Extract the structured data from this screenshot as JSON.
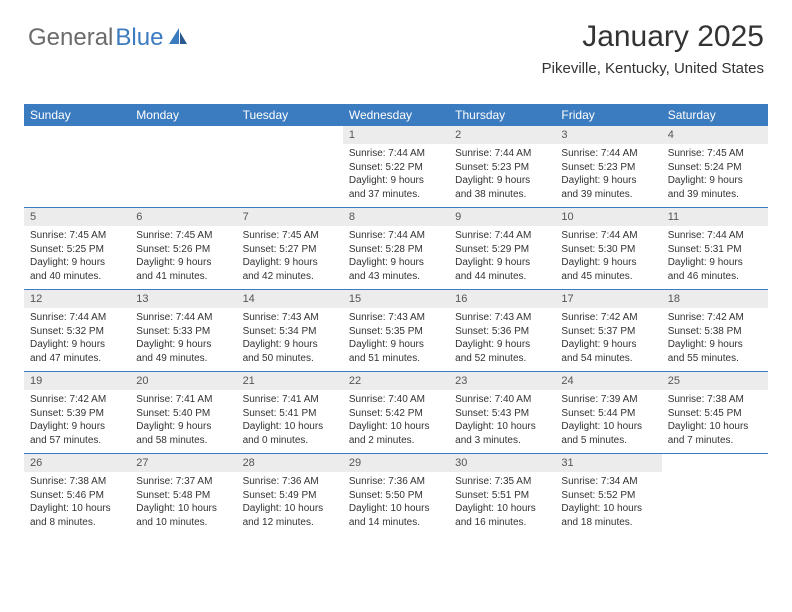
{
  "logo": {
    "text1": "General",
    "text2": "Blue"
  },
  "header": {
    "month": "January 2025",
    "location": "Pikeville, Kentucky, United States"
  },
  "colors": {
    "accent": "#3b7bbf",
    "dayNumBg": "#ececec",
    "text": "#333333",
    "logoGray": "#6b6b6b"
  },
  "dayNames": [
    "Sunday",
    "Monday",
    "Tuesday",
    "Wednesday",
    "Thursday",
    "Friday",
    "Saturday"
  ],
  "weeks": [
    [
      {
        "empty": true
      },
      {
        "empty": true
      },
      {
        "empty": true
      },
      {
        "num": "1",
        "sunrise": "7:44 AM",
        "sunset": "5:22 PM",
        "daylight": "9 hours and 37 minutes."
      },
      {
        "num": "2",
        "sunrise": "7:44 AM",
        "sunset": "5:23 PM",
        "daylight": "9 hours and 38 minutes."
      },
      {
        "num": "3",
        "sunrise": "7:44 AM",
        "sunset": "5:23 PM",
        "daylight": "9 hours and 39 minutes."
      },
      {
        "num": "4",
        "sunrise": "7:45 AM",
        "sunset": "5:24 PM",
        "daylight": "9 hours and 39 minutes."
      }
    ],
    [
      {
        "num": "5",
        "sunrise": "7:45 AM",
        "sunset": "5:25 PM",
        "daylight": "9 hours and 40 minutes."
      },
      {
        "num": "6",
        "sunrise": "7:45 AM",
        "sunset": "5:26 PM",
        "daylight": "9 hours and 41 minutes."
      },
      {
        "num": "7",
        "sunrise": "7:45 AM",
        "sunset": "5:27 PM",
        "daylight": "9 hours and 42 minutes."
      },
      {
        "num": "8",
        "sunrise": "7:44 AM",
        "sunset": "5:28 PM",
        "daylight": "9 hours and 43 minutes."
      },
      {
        "num": "9",
        "sunrise": "7:44 AM",
        "sunset": "5:29 PM",
        "daylight": "9 hours and 44 minutes."
      },
      {
        "num": "10",
        "sunrise": "7:44 AM",
        "sunset": "5:30 PM",
        "daylight": "9 hours and 45 minutes."
      },
      {
        "num": "11",
        "sunrise": "7:44 AM",
        "sunset": "5:31 PM",
        "daylight": "9 hours and 46 minutes."
      }
    ],
    [
      {
        "num": "12",
        "sunrise": "7:44 AM",
        "sunset": "5:32 PM",
        "daylight": "9 hours and 47 minutes."
      },
      {
        "num": "13",
        "sunrise": "7:44 AM",
        "sunset": "5:33 PM",
        "daylight": "9 hours and 49 minutes."
      },
      {
        "num": "14",
        "sunrise": "7:43 AM",
        "sunset": "5:34 PM",
        "daylight": "9 hours and 50 minutes."
      },
      {
        "num": "15",
        "sunrise": "7:43 AM",
        "sunset": "5:35 PM",
        "daylight": "9 hours and 51 minutes."
      },
      {
        "num": "16",
        "sunrise": "7:43 AM",
        "sunset": "5:36 PM",
        "daylight": "9 hours and 52 minutes."
      },
      {
        "num": "17",
        "sunrise": "7:42 AM",
        "sunset": "5:37 PM",
        "daylight": "9 hours and 54 minutes."
      },
      {
        "num": "18",
        "sunrise": "7:42 AM",
        "sunset": "5:38 PM",
        "daylight": "9 hours and 55 minutes."
      }
    ],
    [
      {
        "num": "19",
        "sunrise": "7:42 AM",
        "sunset": "5:39 PM",
        "daylight": "9 hours and 57 minutes."
      },
      {
        "num": "20",
        "sunrise": "7:41 AM",
        "sunset": "5:40 PM",
        "daylight": "9 hours and 58 minutes."
      },
      {
        "num": "21",
        "sunrise": "7:41 AM",
        "sunset": "5:41 PM",
        "daylight": "10 hours and 0 minutes."
      },
      {
        "num": "22",
        "sunrise": "7:40 AM",
        "sunset": "5:42 PM",
        "daylight": "10 hours and 2 minutes."
      },
      {
        "num": "23",
        "sunrise": "7:40 AM",
        "sunset": "5:43 PM",
        "daylight": "10 hours and 3 minutes."
      },
      {
        "num": "24",
        "sunrise": "7:39 AM",
        "sunset": "5:44 PM",
        "daylight": "10 hours and 5 minutes."
      },
      {
        "num": "25",
        "sunrise": "7:38 AM",
        "sunset": "5:45 PM",
        "daylight": "10 hours and 7 minutes."
      }
    ],
    [
      {
        "num": "26",
        "sunrise": "7:38 AM",
        "sunset": "5:46 PM",
        "daylight": "10 hours and 8 minutes."
      },
      {
        "num": "27",
        "sunrise": "7:37 AM",
        "sunset": "5:48 PM",
        "daylight": "10 hours and 10 minutes."
      },
      {
        "num": "28",
        "sunrise": "7:36 AM",
        "sunset": "5:49 PM",
        "daylight": "10 hours and 12 minutes."
      },
      {
        "num": "29",
        "sunrise": "7:36 AM",
        "sunset": "5:50 PM",
        "daylight": "10 hours and 14 minutes."
      },
      {
        "num": "30",
        "sunrise": "7:35 AM",
        "sunset": "5:51 PM",
        "daylight": "10 hours and 16 minutes."
      },
      {
        "num": "31",
        "sunrise": "7:34 AM",
        "sunset": "5:52 PM",
        "daylight": "10 hours and 18 minutes."
      },
      {
        "empty": true
      }
    ]
  ]
}
